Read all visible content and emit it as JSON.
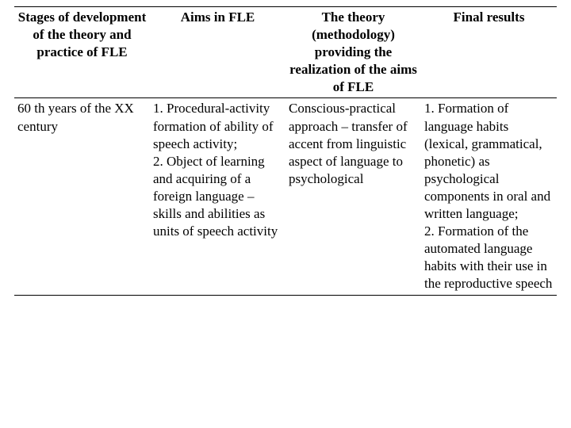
{
  "table": {
    "headers": [
      "Stages of development of the theory and practice of FLE",
      "Aims in FLE",
      "The theory (methodology) providing the realization of the aims of FLE",
      "Final results"
    ],
    "row": {
      "stages": "60 th years of the XX century",
      "aims": "1. Procedural-activity formation of ability of speech activity;\n2. Object of learning and acquiring of a foreign language – skills and abilities as units of speech activity",
      "theory": "Conscious-practical approach – transfer of accent from linguistic aspect of language to psychological",
      "results": "1. Formation of language habits (lexical, grammatical, phonetic) as psychological components in oral and written language;\n2. Formation of the automated language habits with their use in the reproductive speech"
    }
  }
}
